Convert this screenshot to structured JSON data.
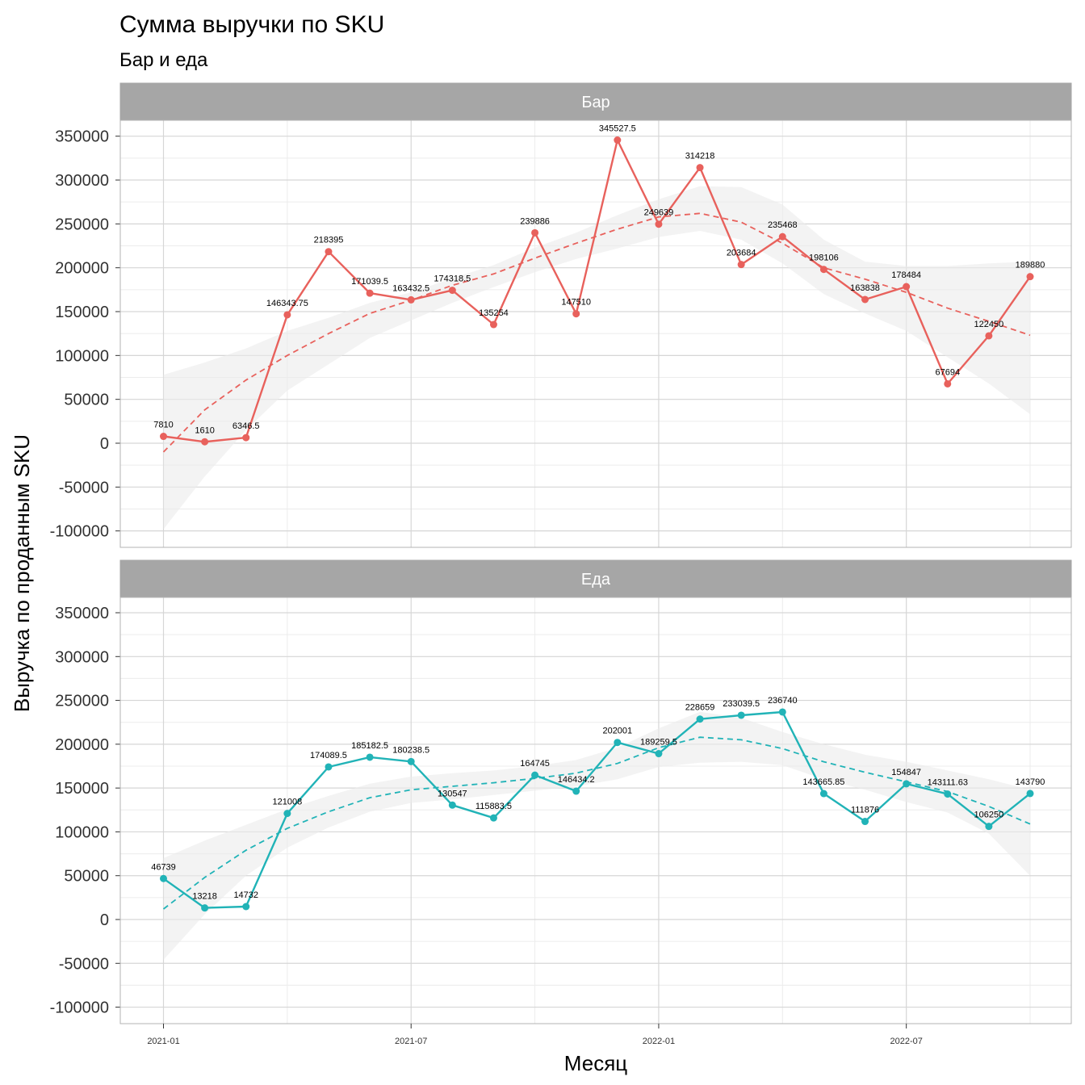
{
  "chart_data": {
    "type": "line",
    "title": "Сумма выручки по SKU",
    "subtitle": "Бар и еда",
    "xlabel": "Месяц",
    "ylabel": "Выручка по проданным SKU",
    "x": [
      "2021-01",
      "2021-02",
      "2021-03",
      "2021-04",
      "2021-05",
      "2021-06",
      "2021-07",
      "2021-08",
      "2021-09",
      "2021-10",
      "2021-11",
      "2021-12",
      "2022-01",
      "2022-02",
      "2022-03",
      "2022-04",
      "2022-05",
      "2022-06",
      "2022-07",
      "2022-08",
      "2022-09",
      "2022-10"
    ],
    "x_ticks": [
      "2021-01",
      "2021-07",
      "2022-01",
      "2022-07"
    ],
    "y_ticks": [
      "350000",
      "300000",
      "250000",
      "200000",
      "150000",
      "100000",
      "50000",
      "0",
      "-50000",
      "-100000"
    ],
    "ylim": [
      -110000,
      370000
    ],
    "grid": true,
    "facets": [
      {
        "strip": "Бар",
        "color": "#e8615c",
        "values": [
          7810,
          1610,
          6346.5,
          146343.75,
          218395,
          171039.5,
          163432.5,
          174318.5,
          135254,
          239886,
          147510,
          345527.5,
          249639,
          314218,
          203684,
          235468,
          198106,
          163838,
          178484,
          67694,
          122450,
          189880
        ],
        "labels": [
          "7810",
          "1610",
          "6346.5",
          "146343.75",
          "218395",
          "171039.5",
          "163432.5",
          "174318.5",
          "135254",
          "239886",
          "147510",
          "345527.5",
          "249639",
          "314218",
          "203684",
          "235468",
          "198106",
          "163838",
          "178484",
          "67694",
          "122450",
          "189880"
        ],
        "smooth": [
          -10000,
          38000,
          72000,
          100000,
          125000,
          148000,
          163000,
          180000,
          193000,
          211000,
          228000,
          244000,
          258000,
          262000,
          252000,
          228000,
          200000,
          187000,
          172000,
          154000,
          139000,
          123000
        ],
        "band_upper": [
          78000,
          92000,
          108000,
          128000,
          143000,
          160000,
          172000,
          188000,
          203000,
          223000,
          240000,
          260000,
          278000,
          293000,
          292000,
          272000,
          232000,
          207000,
          202000,
          202000,
          205000,
          207000
        ],
        "band_lower": [
          -98000,
          -38000,
          15000,
          60000,
          90000,
          120000,
          140000,
          160000,
          178000,
          195000,
          210000,
          222000,
          235000,
          242000,
          232000,
          205000,
          170000,
          148000,
          128000,
          98000,
          68000,
          33000
        ]
      },
      {
        "strip": "Еда",
        "color": "#21b3b7",
        "values": [
          46739,
          13218,
          14732,
          121008,
          174089.5,
          185182.5,
          180238.5,
          130547,
          115883.5,
          164745,
          146434.2,
          202001,
          189259.5,
          228659,
          233039.5,
          236740,
          143665.85,
          111876,
          154847,
          143111.63,
          106250,
          143790
        ],
        "labels": [
          "46739",
          "13218",
          "14732",
          "121008",
          "174089.5",
          "185182.5",
          "180238.5",
          "130547",
          "115883.5",
          "164745",
          "146434.2",
          "202001",
          "189259.5",
          "228659",
          "233039.5",
          "236740",
          "143665.85",
          "111876",
          "154847",
          "143111.63",
          "106250",
          "143790"
        ],
        "smooth": [
          12000,
          48000,
          79000,
          104000,
          123000,
          139000,
          148000,
          152000,
          156000,
          161000,
          167000,
          178000,
          196000,
          208000,
          205000,
          195000,
          180000,
          168000,
          157000,
          146000,
          129000,
          109000
        ],
        "band_upper": [
          70000,
          90000,
          108000,
          126000,
          141000,
          155000,
          163000,
          167000,
          170000,
          175000,
          182000,
          196000,
          218000,
          237000,
          230000,
          214000,
          200000,
          188000,
          180000,
          170000,
          160000,
          148000
        ],
        "band_lower": [
          -46000,
          6000,
          50000,
          82000,
          105000,
          123000,
          133000,
          137000,
          142000,
          147000,
          152000,
          160000,
          174000,
          179000,
          180000,
          176000,
          160000,
          148000,
          134000,
          122000,
          98000,
          50000
        ]
      }
    ]
  }
}
